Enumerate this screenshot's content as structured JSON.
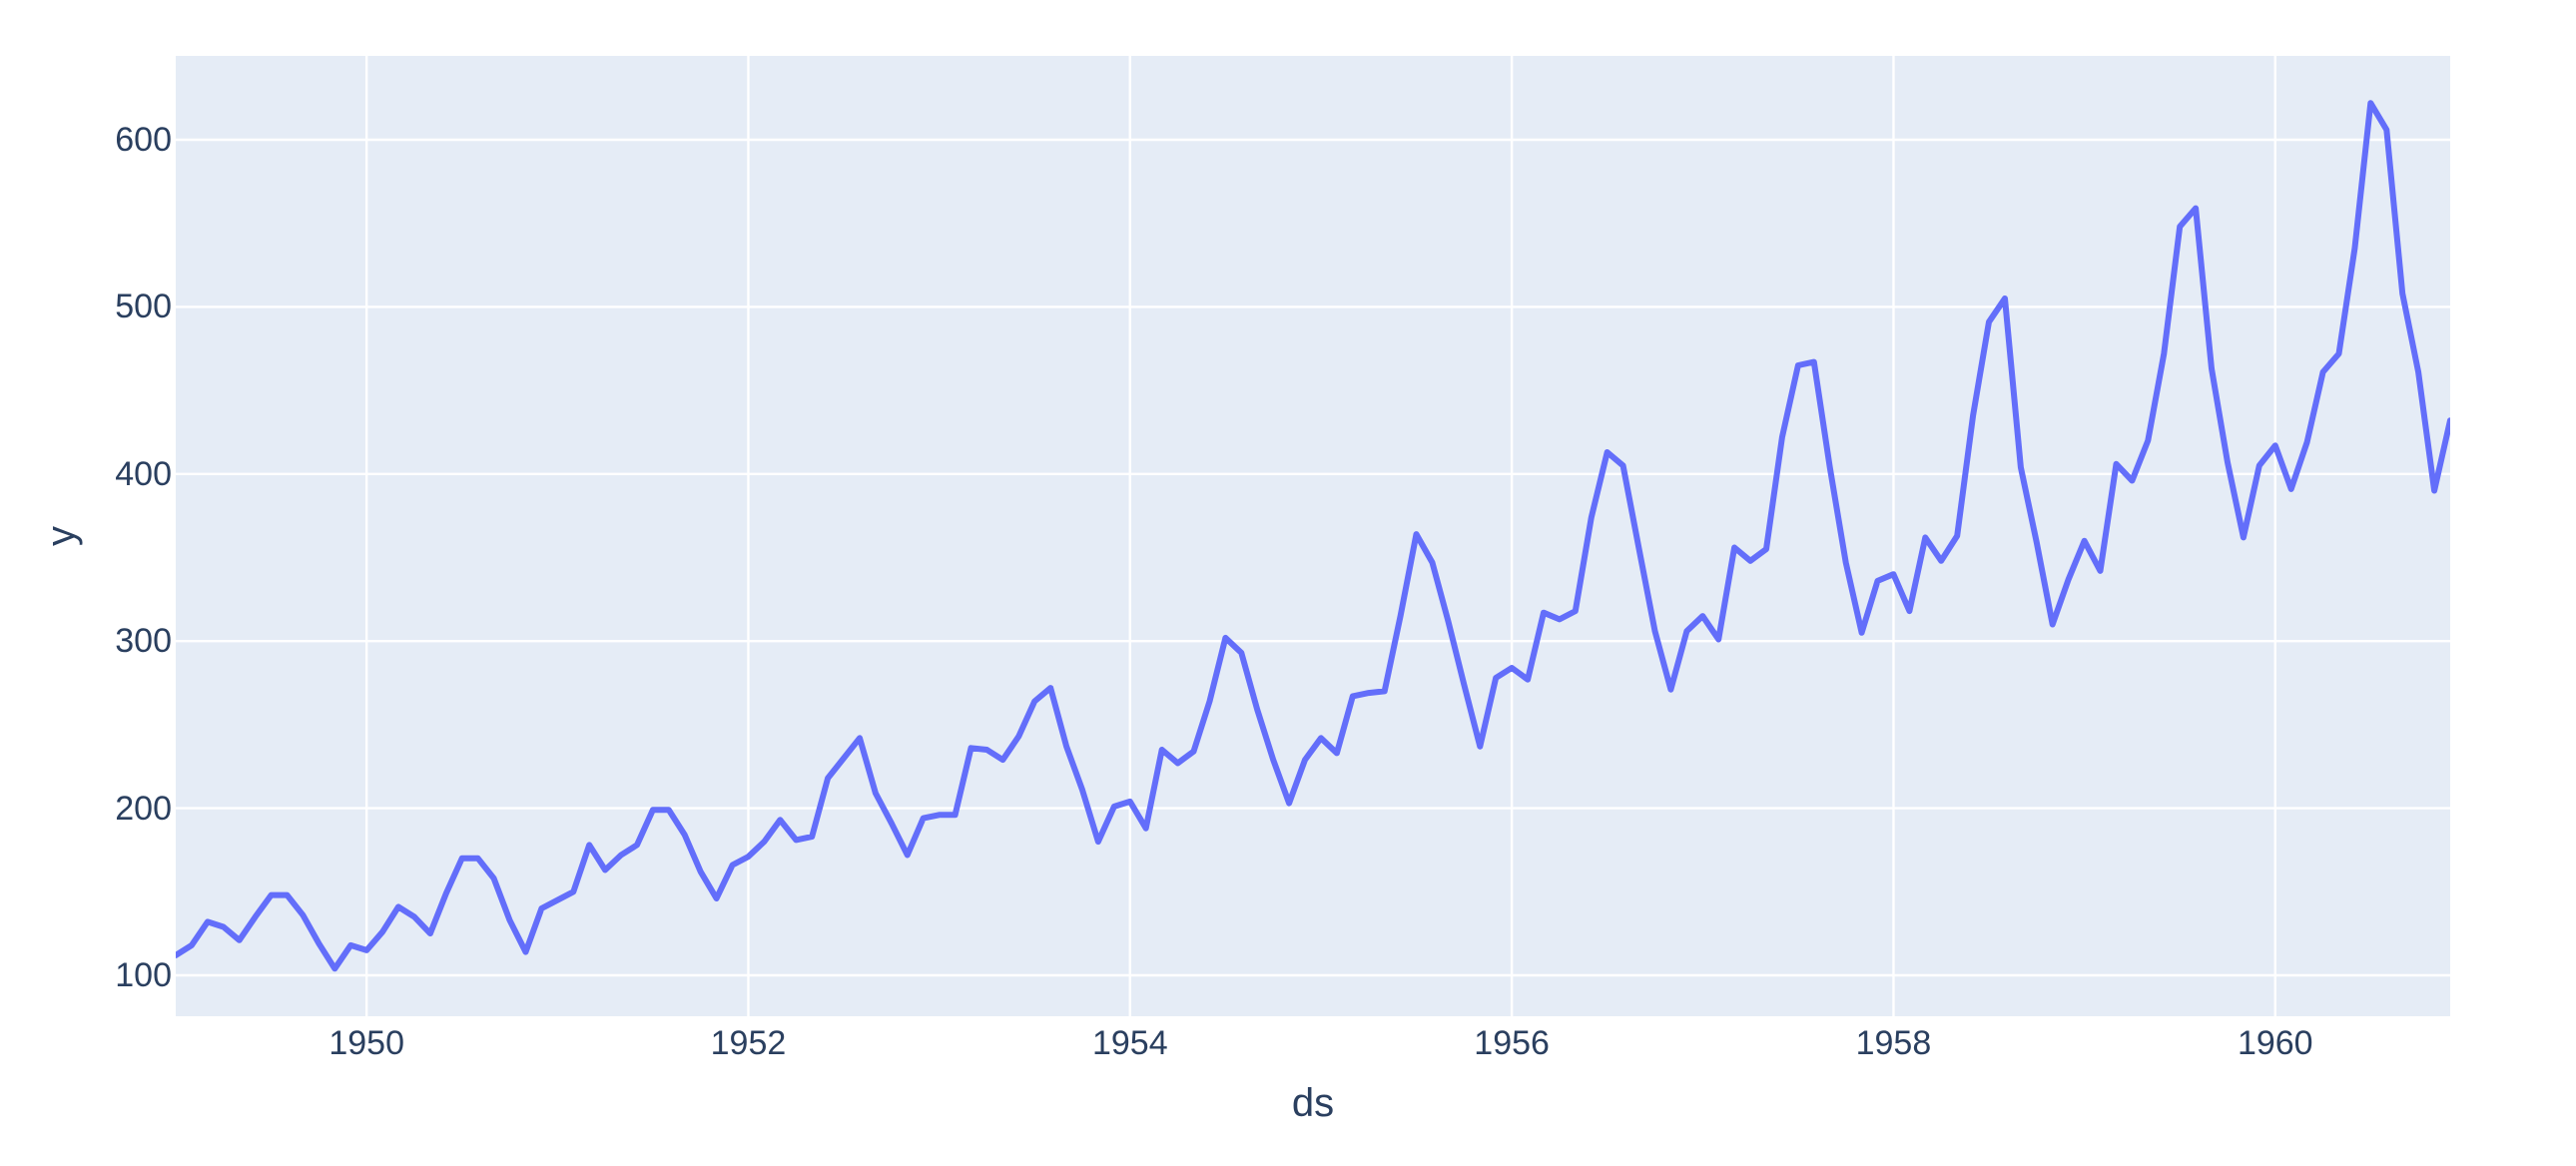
{
  "chart_data": {
    "type": "line",
    "title": "",
    "xlabel": "ds",
    "ylabel": "y",
    "x_start": "1949-01",
    "x_end": "1960-12",
    "x_freq": "monthly",
    "series": [
      {
        "name": "y",
        "values": [
          112,
          118,
          132,
          129,
          121,
          135,
          148,
          148,
          136,
          119,
          104,
          118,
          115,
          126,
          141,
          135,
          125,
          149,
          170,
          170,
          158,
          133,
          114,
          140,
          145,
          150,
          178,
          163,
          172,
          178,
          199,
          199,
          184,
          162,
          146,
          166,
          171,
          180,
          193,
          181,
          183,
          218,
          230,
          242,
          209,
          191,
          172,
          194,
          196,
          196,
          236,
          235,
          229,
          243,
          264,
          272,
          237,
          211,
          180,
          201,
          204,
          188,
          235,
          227,
          234,
          264,
          302,
          293,
          259,
          229,
          203,
          229,
          242,
          233,
          267,
          269,
          270,
          315,
          364,
          347,
          312,
          274,
          237,
          278,
          284,
          277,
          317,
          313,
          318,
          374,
          413,
          405,
          355,
          306,
          271,
          306,
          315,
          301,
          356,
          348,
          355,
          422,
          465,
          467,
          404,
          347,
          305,
          336,
          340,
          318,
          362,
          348,
          363,
          435,
          491,
          505,
          404,
          359,
          310,
          337,
          360,
          342,
          406,
          396,
          420,
          472,
          548,
          559,
          463,
          407,
          362,
          405,
          417,
          391,
          419,
          461,
          472,
          535,
          622,
          606,
          508,
          461,
          390,
          432
        ]
      }
    ],
    "x_tick_labels": [
      "1950",
      "1952",
      "1954",
      "1956",
      "1958",
      "1960"
    ],
    "y_tick_labels": [
      "100",
      "200",
      "300",
      "400",
      "500",
      "600"
    ],
    "ylim": [
      75.5,
      650.2
    ],
    "grid": true,
    "legend": false,
    "colors": {
      "line": "#636efa",
      "plot_background": "#e5ecf6",
      "gridline": "#ffffff",
      "paper_background": "#ffffff",
      "tick_text": "#2a3f5f"
    }
  }
}
